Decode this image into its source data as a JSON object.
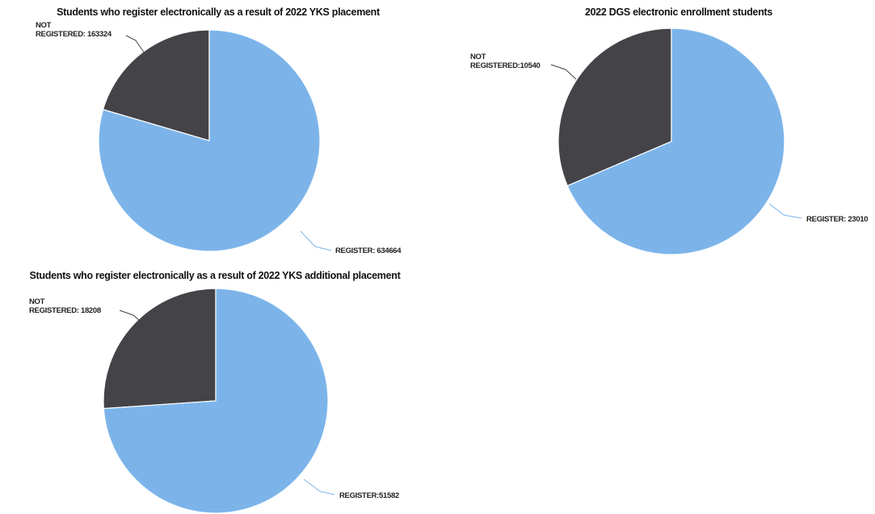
{
  "colors": {
    "registered": "#7cb4ea",
    "not_registered": "#434348",
    "slice_border": "#ffffff",
    "leader_registered": "#7cb4ea",
    "leader_not_registered": "#434348"
  },
  "chart_data": [
    {
      "type": "pie",
      "title": "Students who register electronically as a result of 2022 YKS placement",
      "series": [
        {
          "name": "",
          "values": [
            {
              "label_line1": "NOT",
              "label_line2": "REGISTERED: 163324",
              "label": "NOT REGISTERED",
              "value": 163324
            },
            {
              "label_line1": "",
              "label_line2": "REGISTER: 634664",
              "label": "REGISTER",
              "value": 634664
            }
          ]
        }
      ]
    },
    {
      "type": "pie",
      "title": "2022 DGS electronic enrollment students",
      "series": [
        {
          "name": "",
          "values": [
            {
              "label_line1": "NOT",
              "label_line2": "REGISTERED:10540",
              "label": "NOT REGISTERED",
              "value": 10540
            },
            {
              "label_line1": "",
              "label_line2": "REGISTER: 23010",
              "label": "REGISTER",
              "value": 23010
            }
          ]
        }
      ]
    },
    {
      "type": "pie",
      "title": "Students who register electronically as a result of 2022 YKS additional placement",
      "series": [
        {
          "name": "",
          "values": [
            {
              "label_line1": "NOT",
              "label_line2": "REGISTERED: 18208",
              "label": "NOT REGISTERED",
              "value": 18208
            },
            {
              "label_line1": "",
              "label_line2": "REGISTER:51582",
              "label": "REGISTER",
              "value": 51582
            }
          ]
        }
      ]
    }
  ]
}
